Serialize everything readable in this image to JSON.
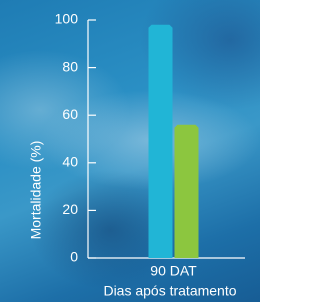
{
  "chart_data": {
    "type": "bar",
    "y_label": "Mortalidade (%)",
    "x_label": "Dias após tratamento",
    "categories": [
      "90 DAT"
    ],
    "series": [
      {
        "color": "#21b5d6",
        "values": [
          98
        ]
      },
      {
        "color": "#8cc63f",
        "values": [
          56
        ]
      }
    ],
    "ylim": [
      0,
      100
    ],
    "yticks": [
      0,
      20,
      40,
      60,
      80,
      100
    ]
  }
}
